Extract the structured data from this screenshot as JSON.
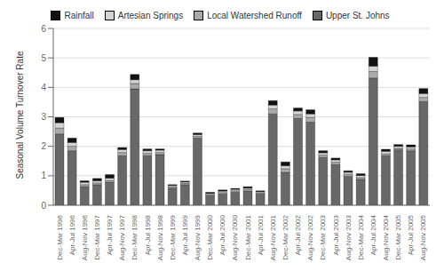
{
  "chart_data": {
    "type": "bar",
    "stacked": true,
    "ylabel": "Seasonal Volume Turnover Rate",
    "categories": [
      "Dec-Mar 1996",
      "Apr-Jul 1996",
      "Aug-Nov 1996",
      "Dec-Mar 1997",
      "Apr-Jul 1997",
      "Aug-Nov 1997",
      "Dec-Mar 1998",
      "Apr-Jul 1998",
      "Aug-Nov 1998",
      "Dec-Mar 1999",
      "Apr-Jul 1999",
      "Aug-Nov 1999",
      "Dec-Mar 2000",
      "Apr-Jul 2000",
      "Aug-Nov 2000",
      "Dec-Mar 2001",
      "Apr-Jul 2001",
      "Aug-Nov 2001",
      "Dec-Mar 2002",
      "Apr-Jul 2002",
      "Aug-Nov 2002",
      "Dec-Mar 2003",
      "Apr-Jul 2003",
      "Aug-Nov 2003",
      "Dec-Mar 2004",
      "Apr-Jul 2004",
      "Aug-Nov 2004",
      "Dec-Mar 2005",
      "Apr-Jul 2005",
      "Aug-Nov 2005"
    ],
    "series": [
      {
        "name": "Upper St. Johns",
        "color": "#686868",
        "values": [
          2.42,
          1.85,
          0.63,
          0.7,
          0.78,
          1.68,
          3.95,
          1.68,
          1.72,
          0.58,
          0.7,
          2.28,
          0.32,
          0.38,
          0.44,
          0.48,
          0.38,
          3.1,
          1.12,
          2.95,
          2.82,
          1.62,
          1.38,
          0.98,
          0.88,
          4.32,
          1.68,
          1.88,
          1.85,
          3.52
        ]
      },
      {
        "name": "Local Watershed Runoff",
        "color": "#aaaaaa",
        "values": [
          0.2,
          0.15,
          0.07,
          0.06,
          0.06,
          0.11,
          0.18,
          0.08,
          0.07,
          0.04,
          0.04,
          0.06,
          0.04,
          0.05,
          0.05,
          0.05,
          0.04,
          0.17,
          0.12,
          0.13,
          0.16,
          0.08,
          0.08,
          0.07,
          0.06,
          0.22,
          0.06,
          0.05,
          0.06,
          0.14
        ]
      },
      {
        "name": "Artesian Springs",
        "color": "#d4d4d4",
        "values": [
          0.18,
          0.13,
          0.08,
          0.07,
          0.08,
          0.1,
          0.13,
          0.09,
          0.08,
          0.05,
          0.05,
          0.06,
          0.04,
          0.05,
          0.05,
          0.05,
          0.04,
          0.13,
          0.1,
          0.12,
          0.12,
          0.08,
          0.08,
          0.07,
          0.07,
          0.18,
          0.09,
          0.07,
          0.07,
          0.13
        ]
      },
      {
        "name": "Rainfall",
        "color": "#111111",
        "values": [
          0.18,
          0.15,
          0.05,
          0.08,
          0.12,
          0.07,
          0.18,
          0.06,
          0.04,
          0.03,
          0.03,
          0.05,
          0.04,
          0.04,
          0.03,
          0.05,
          0.03,
          0.15,
          0.13,
          0.1,
          0.14,
          0.07,
          0.06,
          0.05,
          0.06,
          0.3,
          0.07,
          0.06,
          0.07,
          0.17
        ]
      }
    ],
    "ylim": [
      0,
      6
    ],
    "yticks": [
      0,
      1,
      2,
      3,
      4,
      5,
      6
    ],
    "grid": true,
    "legend": "upper center"
  }
}
